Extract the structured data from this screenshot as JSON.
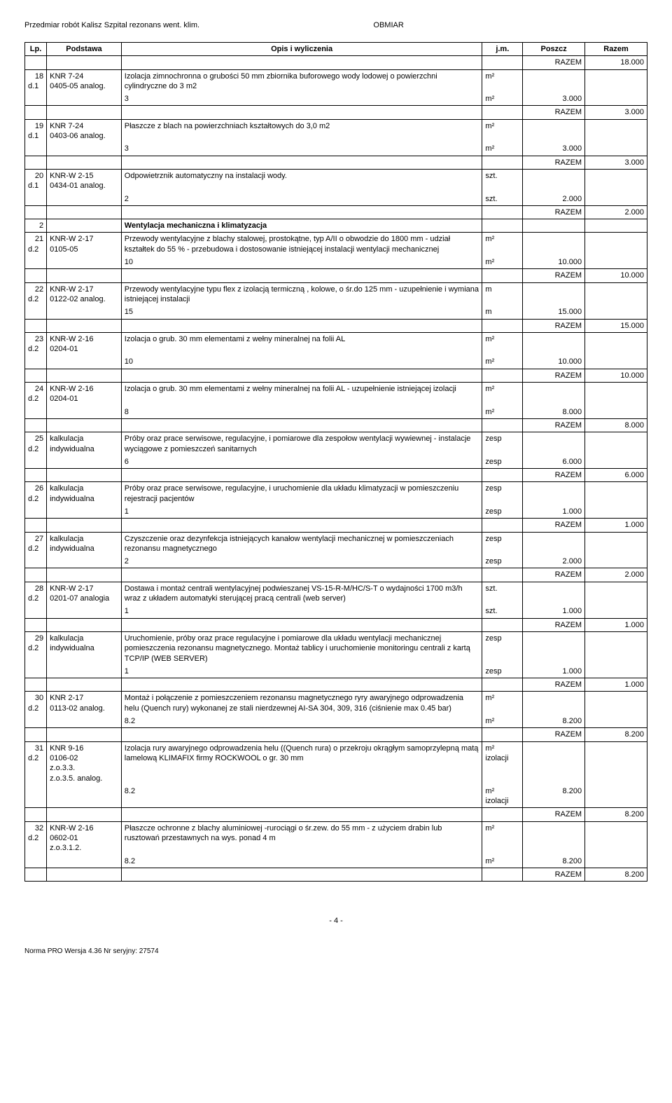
{
  "header": {
    "left": "Przedmiar robót Kalisz Szpital rezonans went. klim.",
    "right": "OBMIAR"
  },
  "columns": {
    "lp": "Lp.",
    "pod": "Podstawa",
    "opis": "Opis i wyliczenia",
    "jm": "j.m.",
    "poszcz": "Poszcz",
    "razem": "Razem"
  },
  "items": [
    {
      "razem_top": "18.000",
      "lp": "18",
      "pod": "KNR 7-24\n0405-05 analog.",
      "d": "d.1",
      "opis": "Izolacja zimnochronna o grubości 50 mm zbiornika buforowego wody lodowej o powierzchni cylindryczne do 3 m2",
      "jm": "m²",
      "calc": "3",
      "calc_jm": "m²",
      "calc_val": "3.000",
      "razem": "3.000"
    },
    {
      "lp": "19",
      "pod": "KNR 7-24\n0403-06 analog.",
      "d": "d.1",
      "opis": "Płaszcze z blach na powierzchniach kształtowych do 3,0 m2",
      "jm": "m²",
      "calc": "3",
      "calc_jm": "m²",
      "calc_val": "3.000",
      "razem": "3.000"
    },
    {
      "lp": "20",
      "pod": "KNR-W 2-15\n0434-01 analog.",
      "d": "d.1",
      "opis": "Odpowietrznik automatyczny na instalacji wody.",
      "jm": "szt.",
      "calc": "2",
      "calc_jm": "szt.",
      "calc_val": "2.000",
      "razem": "2.000"
    },
    {
      "section_lp": "2",
      "section_title": "Wentylacja mechaniczna i klimatyzacja"
    },
    {
      "lp": "21",
      "pod": "KNR-W 2-17\n0105-05",
      "d": "d.2",
      "opis": "Przewody wentylacyjne z blachy stalowej, prostokątne, typ A/II o obwodzie do 1800 mm - udział kształtek do 55 % - przebudowa i dostosowanie istniejącej instalacji wentylacji mechanicznej",
      "jm": "m²",
      "calc": "10",
      "calc_jm": "m²",
      "calc_val": "10.000",
      "razem": "10.000"
    },
    {
      "lp": "22",
      "pod": "KNR-W 2-17\n0122-02 analog.",
      "d": "d.2",
      "opis": "Przewody wentylacyjne typu flex z izolacją termiczną , kolowe, o śr.do 125 mm - uzupełnienie i wymiana istniejącej instalacji",
      "jm": "m",
      "calc": "15",
      "calc_jm": "m",
      "calc_val": "15.000",
      "razem": "15.000"
    },
    {
      "lp": "23",
      "pod": "KNR-W 2-16\n0204-01",
      "d": "d.2",
      "opis": "Izolacja o grub. 30 mm elementami z wełny mineralnej na folii AL",
      "jm": "m²",
      "calc": "10",
      "calc_jm": "m²",
      "calc_val": "10.000",
      "razem": "10.000"
    },
    {
      "lp": "24",
      "pod": "KNR-W 2-16\n0204-01",
      "d": "d.2",
      "opis": "Izolacja o grub. 30 mm elementami z wełny mineralnej na folii AL - uzupełnienie istniejącej izolacji",
      "jm": "m²",
      "calc": "8",
      "calc_jm": "m²",
      "calc_val": "8.000",
      "razem": "8.000"
    },
    {
      "lp": "25",
      "pod": "kalkulacja indywidualna",
      "d": "d.2",
      "opis": "Próby oraz prace serwisowe, regulacyjne, i pomiarowe dla zespołow wentylacji wywiewnej - instalacje wyciągowe z pomieszczeń sanitarnych",
      "jm": "zesp",
      "calc": "6",
      "calc_jm": "zesp",
      "calc_val": "6.000",
      "razem": "6.000"
    },
    {
      "lp": "26",
      "pod": "kalkulacja indywidualna",
      "d": "d.2",
      "opis": "Próby oraz prace serwisowe, regulacyjne, i uruchomienie dla układu klimatyzacji w pomieszczeniu rejestracji pacjentów",
      "jm": "zesp",
      "calc": "1",
      "calc_jm": "zesp",
      "calc_val": "1.000",
      "razem": "1.000"
    },
    {
      "lp": "27",
      "pod": "kalkulacja indywidualna",
      "d": "d.2",
      "opis": "Czyszczenie oraz dezynfekcja istniejących kanałow wentylacji mechanicznej w pomieszczeniach rezonansu magnetycznego",
      "jm": "zesp",
      "calc": "2",
      "calc_jm": "zesp",
      "calc_val": "2.000",
      "razem": "2.000"
    },
    {
      "lp": "28",
      "pod": "KNR-W 2-17\n0201-07 analogia",
      "d": "d.2",
      "opis": "Dostawa i montaż centrali wentylacyjnej podwieszanej VS-15-R-M/HC/S-T o wydajności 1700 m3/h wraz z układem automatyki sterującej pracą centrali (web server)",
      "jm": "szt.",
      "calc": "1",
      "calc_jm": "szt.",
      "calc_val": "1.000",
      "razem": "1.000"
    },
    {
      "lp": "29",
      "pod": "kalkulacja indywidualna",
      "d": "d.2",
      "opis": "Uruchomienie, próby oraz prace regulacyjne i pomiarowe dla układu wentylacji mechanicznej pomieszczenia rezonansu magnetycznego. Montaż tablicy i uruchomienie monitoringu centrali z kartą TCP/IP (WEB SERVER)",
      "jm": "zesp",
      "calc": "1",
      "calc_jm": "zesp",
      "calc_val": "1.000",
      "razem": "1.000"
    },
    {
      "lp": "30",
      "pod": "KNR 2-17\n0113-02 analog.",
      "d": "d.2",
      "opis": "Montaż i połączenie z pomieszczeniem rezonansu magnetycznego ryry awaryjnego odprowadzenia helu (Quench rury) wykonanej ze stali nierdzewnej AI-SA 304, 309, 316 (ciśnienie max 0.45 bar)",
      "jm": "m²",
      "calc": "8.2",
      "calc_jm": "m²",
      "calc_val": "8.200",
      "razem": "8.200"
    },
    {
      "lp": "31",
      "pod": "KNR 9-16\n0106-02\nz.o.3.3.\nz.o.3.5. analog.",
      "d": "d.2",
      "opis": "Izolacja rury awaryjnego odprowadzenia helu ((Quench rura) o przekroju okrągłym samoprzylepną matą lamelową KLIMAFIX firmy ROCKWOOL o gr. 30 mm",
      "jm": "m² izolacji",
      "calc": "8.2",
      "calc_jm": "m² izolacji",
      "calc_val": "8.200",
      "razem": "8.200"
    },
    {
      "lp": "32",
      "pod": "KNR-W 2-16\n0602-01\nz.o.3.1.2.",
      "d": "d.2",
      "opis": "Płaszcze ochronne z blachy aluminiowej -rurociągi o śr.zew. do 55 mm - z użyciem drabin lub rusztowań przestawnych na wys. ponad 4 m",
      "jm": "m²",
      "calc": "8.2",
      "calc_jm": "m²",
      "calc_val": "8.200",
      "razem": "8.200"
    }
  ],
  "razem_label": "RAZEM",
  "footer": {
    "page": "- 4 -",
    "norma": "Norma PRO Wersja 4.36 Nr seryjny: 27574"
  }
}
